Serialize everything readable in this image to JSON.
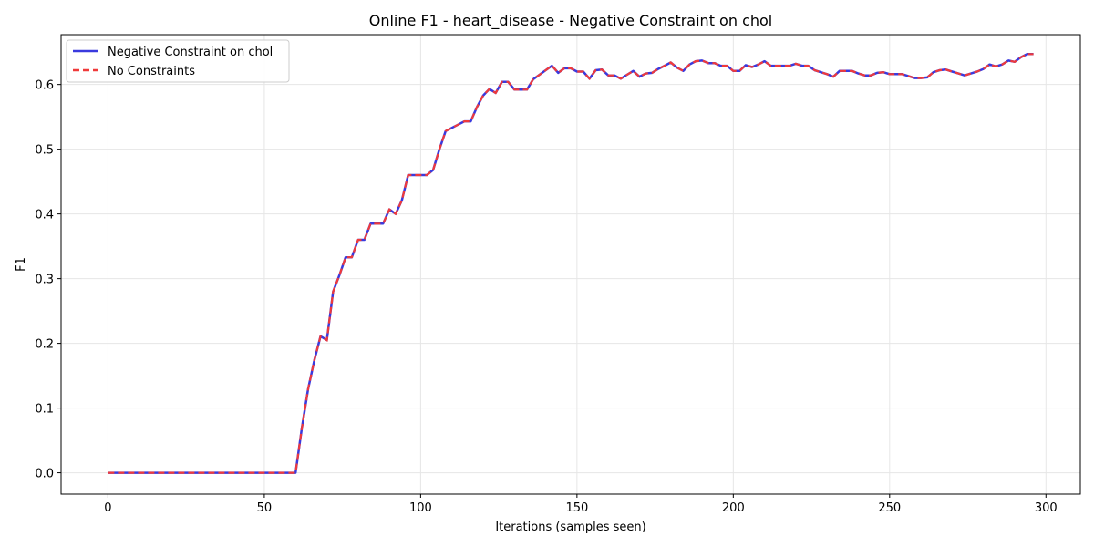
{
  "chart_data": {
    "type": "line",
    "title": "Online F1 - heart_disease - Negative Constraint on chol",
    "xlabel": "Iterations (samples seen)",
    "ylabel": "F1",
    "xlim": [
      -15,
      311
    ],
    "ylim": [
      -0.033,
      0.677
    ],
    "x_ticks": [
      0,
      50,
      100,
      150,
      200,
      250,
      300
    ],
    "y_ticks": [
      0.0,
      0.1,
      0.2,
      0.3,
      0.4,
      0.5,
      0.6
    ],
    "x_tick_labels": [
      "0",
      "50",
      "100",
      "150",
      "200",
      "250",
      "300"
    ],
    "y_tick_labels": [
      "0.0",
      "0.1",
      "0.2",
      "0.3",
      "0.4",
      "0.5",
      "0.6"
    ],
    "grid": true,
    "legend_position": "upper-left",
    "series": [
      {
        "name": "Negative Constraint on chol",
        "color": "#3a3ade",
        "style": "solid"
      },
      {
        "name": "No Constraints",
        "color": "#f03a3a",
        "style": "dashed"
      }
    ],
    "x": [
      0,
      2,
      4,
      6,
      8,
      10,
      12,
      14,
      16,
      18,
      20,
      22,
      24,
      26,
      28,
      30,
      32,
      34,
      36,
      38,
      40,
      42,
      44,
      46,
      48,
      50,
      52,
      54,
      56,
      58,
      60,
      62,
      64,
      66,
      68,
      70,
      72,
      74,
      76,
      78,
      80,
      82,
      84,
      86,
      88,
      90,
      92,
      94,
      96,
      98,
      100,
      102,
      104,
      106,
      108,
      110,
      112,
      114,
      116,
      118,
      120,
      122,
      124,
      126,
      128,
      130,
      132,
      134,
      136,
      138,
      140,
      142,
      144,
      146,
      148,
      150,
      152,
      154,
      156,
      158,
      160,
      162,
      164,
      166,
      168,
      170,
      172,
      174,
      176,
      178,
      180,
      182,
      184,
      186,
      188,
      190,
      192,
      194,
      196,
      198,
      200,
      202,
      204,
      206,
      208,
      210,
      212,
      214,
      216,
      218,
      220,
      222,
      224,
      226,
      228,
      230,
      232,
      234,
      236,
      238,
      240,
      242,
      244,
      246,
      248,
      250,
      252,
      254,
      256,
      258,
      260,
      262,
      264,
      266,
      268,
      270,
      272,
      274,
      276,
      278,
      280,
      282,
      284,
      286,
      288,
      290,
      292,
      294,
      296
    ],
    "y": [
      0,
      0,
      0,
      0,
      0,
      0,
      0,
      0,
      0,
      0,
      0,
      0,
      0,
      0,
      0,
      0,
      0,
      0,
      0,
      0,
      0,
      0,
      0,
      0,
      0,
      0,
      0,
      0,
      0,
      0,
      0,
      0.069,
      0.129,
      0.174,
      0.211,
      0.205,
      0.28,
      0.305,
      0.333,
      0.333,
      0.36,
      0.36,
      0.385,
      0.385,
      0.385,
      0.407,
      0.4,
      0.421,
      0.46,
      0.46,
      0.46,
      0.46,
      0.468,
      0.5,
      0.528,
      0.533,
      0.538,
      0.543,
      0.543,
      0.565,
      0.583,
      0.593,
      0.587,
      0.604,
      0.604,
      0.592,
      0.592,
      0.592,
      0.608,
      0.615,
      0.622,
      0.629,
      0.618,
      0.625,
      0.625,
      0.62,
      0.62,
      0.609,
      0.622,
      0.623,
      0.614,
      0.614,
      0.609,
      0.615,
      0.621,
      0.612,
      0.617,
      0.618,
      0.624,
      0.629,
      0.634,
      0.626,
      0.621,
      0.631,
      0.636,
      0.637,
      0.633,
      0.633,
      0.629,
      0.629,
      0.621,
      0.621,
      0.63,
      0.627,
      0.631,
      0.636,
      0.629,
      0.629,
      0.629,
      0.629,
      0.632,
      0.629,
      0.629,
      0.622,
      0.619,
      0.616,
      0.612,
      0.621,
      0.621,
      0.621,
      0.617,
      0.614,
      0.614,
      0.618,
      0.619,
      0.616,
      0.616,
      0.616,
      0.613,
      0.61,
      0.61,
      0.611,
      0.619,
      0.622,
      0.623,
      0.62,
      0.617,
      0.614,
      0.617,
      0.62,
      0.624,
      0.631,
      0.628,
      0.631,
      0.637,
      0.635,
      0.642,
      0.647,
      0.647
    ]
  }
}
